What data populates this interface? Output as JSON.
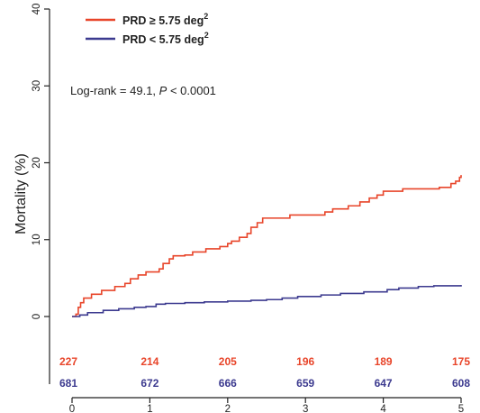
{
  "chart_data": {
    "type": "line",
    "xlabel": "",
    "ylabel": "Mortality (%)",
    "xlim": [
      0,
      5
    ],
    "ylim": [
      0,
      40
    ],
    "x_ticks": [
      0,
      1,
      2,
      3,
      4,
      5
    ],
    "y_ticks": [
      0,
      10,
      20,
      30,
      40
    ],
    "grid": false,
    "legend_position": "top-left",
    "annotation": {
      "prefix": "Log-rank = 49.1, ",
      "p_symbol": "P",
      "suffix": " < 0.0001"
    },
    "series": [
      {
        "name": "PRD ≥ 5.75 deg²",
        "legend_op": "≥",
        "legend_value": "5.75 deg",
        "legend_sup": "2",
        "color": "#e8452a",
        "step": true,
        "points": [
          [
            0.0,
            0.0
          ],
          [
            0.05,
            0.3
          ],
          [
            0.08,
            1.2
          ],
          [
            0.11,
            1.8
          ],
          [
            0.15,
            2.4
          ],
          [
            0.25,
            2.9
          ],
          [
            0.38,
            3.4
          ],
          [
            0.55,
            3.9
          ],
          [
            0.68,
            4.3
          ],
          [
            0.75,
            4.9
          ],
          [
            0.85,
            5.4
          ],
          [
            0.95,
            5.8
          ],
          [
            1.12,
            6.2
          ],
          [
            1.17,
            6.9
          ],
          [
            1.25,
            7.5
          ],
          [
            1.3,
            7.9
          ],
          [
            1.45,
            8.0
          ],
          [
            1.55,
            8.4
          ],
          [
            1.72,
            8.8
          ],
          [
            1.9,
            9.1
          ],
          [
            2.0,
            9.5
          ],
          [
            2.05,
            9.8
          ],
          [
            2.15,
            10.3
          ],
          [
            2.25,
            10.8
          ],
          [
            2.3,
            11.6
          ],
          [
            2.38,
            12.2
          ],
          [
            2.45,
            12.8
          ],
          [
            2.8,
            13.2
          ],
          [
            3.25,
            13.6
          ],
          [
            3.35,
            14.0
          ],
          [
            3.55,
            14.4
          ],
          [
            3.7,
            14.9
          ],
          [
            3.82,
            15.4
          ],
          [
            3.92,
            15.8
          ],
          [
            4.0,
            16.3
          ],
          [
            4.25,
            16.6
          ],
          [
            4.72,
            16.8
          ],
          [
            4.87,
            17.3
          ],
          [
            4.93,
            17.6
          ],
          [
            4.98,
            18.1
          ],
          [
            5.0,
            18.4
          ]
        ],
        "at_risk": [
          "227",
          "214",
          "205",
          "196",
          "189",
          "175"
        ]
      },
      {
        "name": "PRD < 5.75 deg²",
        "legend_op": "<",
        "legend_value": "5.75 deg",
        "legend_sup": "2",
        "color": "#3c3a8f",
        "step": true,
        "points": [
          [
            0.0,
            0.0
          ],
          [
            0.1,
            0.2
          ],
          [
            0.2,
            0.5
          ],
          [
            0.4,
            0.8
          ],
          [
            0.6,
            1.0
          ],
          [
            0.8,
            1.2
          ],
          [
            0.95,
            1.3
          ],
          [
            1.08,
            1.6
          ],
          [
            1.2,
            1.7
          ],
          [
            1.45,
            1.8
          ],
          [
            1.7,
            1.9
          ],
          [
            2.0,
            2.0
          ],
          [
            2.3,
            2.1
          ],
          [
            2.5,
            2.2
          ],
          [
            2.7,
            2.4
          ],
          [
            2.9,
            2.6
          ],
          [
            3.2,
            2.8
          ],
          [
            3.45,
            3.0
          ],
          [
            3.75,
            3.2
          ],
          [
            4.05,
            3.5
          ],
          [
            4.2,
            3.7
          ],
          [
            4.45,
            3.9
          ],
          [
            4.65,
            4.0
          ],
          [
            5.0,
            4.1
          ]
        ],
        "at_risk": [
          "681",
          "672",
          "666",
          "659",
          "647",
          "608"
        ]
      }
    ]
  }
}
